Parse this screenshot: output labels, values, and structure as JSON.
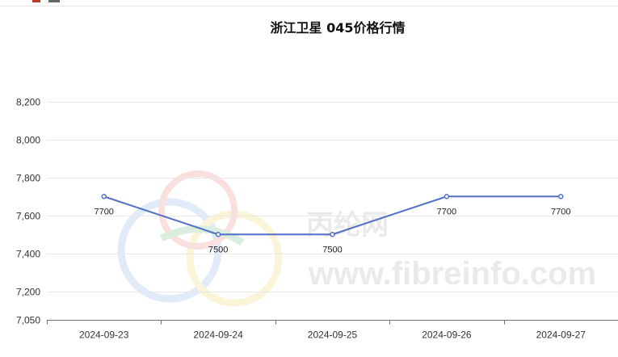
{
  "chart_data": {
    "type": "line",
    "title": "浙江卫星 045价格行情",
    "xlabel": "",
    "ylabel": "",
    "categories": [
      "2024-09-23",
      "2024-09-24",
      "2024-09-25",
      "2024-09-26",
      "2024-09-27"
    ],
    "series": [
      {
        "values": [
          7700,
          7500,
          7500,
          7700,
          7700
        ],
        "color": "#5470c6"
      }
    ],
    "data_labels": [
      "7700",
      "7500",
      "7500",
      "7700",
      "7700"
    ],
    "ylim": [
      7050,
      8250
    ],
    "y_ticks": [
      7050,
      7200,
      7400,
      7600,
      7800,
      8000,
      8200
    ],
    "y_tick_labels": [
      "7,050",
      "7,200",
      "7,400",
      "7,600",
      "7,800",
      "8,000",
      "8,200"
    ],
    "grid": true,
    "legend": "none"
  },
  "watermark": {
    "brand_cn": "丙纶网",
    "url": "www.fibreinfo.com"
  }
}
